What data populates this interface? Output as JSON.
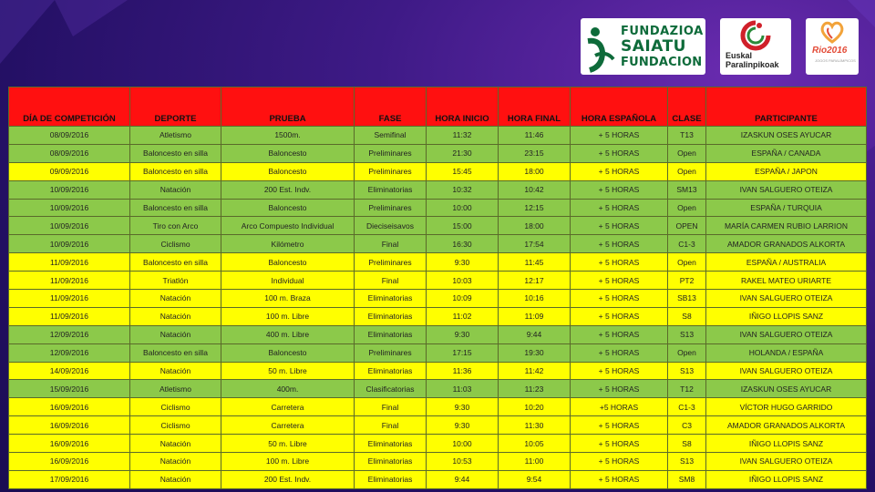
{
  "logos": {
    "fundazioa": [
      "FUNDAZIOA",
      "SAIATU",
      "FUNDACION"
    ],
    "euskal": [
      "Euskal",
      "Paralinpikoak"
    ],
    "rio": "Rio2016",
    "rio_sub": "JOGOS PARALÍMPICOS"
  },
  "table": {
    "headers": [
      "DÍA DE COMPETICIÓN",
      "DEPORTE",
      "PRUEBA",
      "FASE",
      "HORA INICIO",
      "HORA FINAL",
      "HORA ESPAÑOLA",
      "CLASE",
      "PARTICIPANTE"
    ],
    "colors": {
      "header": "#ff1010",
      "green": "#8cc94a",
      "yellow": "#ffff00"
    },
    "rows": [
      {
        "color": "green",
        "cells": [
          "08/09/2016",
          "Atletismo",
          "1500m.",
          "Semifinal",
          "11:32",
          "11:46",
          "+ 5 HORAS",
          "T13",
          "IZASKUN OSES AYUCAR"
        ]
      },
      {
        "color": "green",
        "cells": [
          "08/09/2016",
          "Baloncesto en silla",
          "Baloncesto",
          "Preliminares",
          "21:30",
          "23:15",
          "+ 5 HORAS",
          "Open",
          "ESPAÑA / CANADA"
        ]
      },
      {
        "color": "yellow",
        "cells": [
          "09/09/2016",
          "Baloncesto en silla",
          "Baloncesto",
          "Preliminares",
          "15:45",
          "18:00",
          "+ 5 HORAS",
          "Open",
          "ESPAÑA / JAPON"
        ]
      },
      {
        "color": "green",
        "cells": [
          "10/09/2016",
          "Natación",
          "200 Est. Indv.",
          "Eliminatorias",
          "10:32",
          "10:42",
          "+ 5 HORAS",
          "SM13",
          "IVAN SALGUERO OTEIZA"
        ]
      },
      {
        "color": "green",
        "cells": [
          "10/09/2016",
          "Baloncesto en silla",
          "Baloncesto",
          "Preliminares",
          "10:00",
          "12:15",
          "+ 5 HORAS",
          "Open",
          "ESPAÑA / TURQUIA"
        ]
      },
      {
        "color": "green",
        "cells": [
          "10/09/2016",
          "Tiro con Arco",
          "Arco Compuesto Individual",
          "Dieciseisavos",
          "15:00",
          "18:00",
          "+ 5 HORAS",
          "OPEN",
          "MARÍA CARMEN RUBIO LARRION"
        ]
      },
      {
        "color": "green",
        "cells": [
          "10/09/2016",
          "Ciclismo",
          "Kilómetro",
          "Final",
          "16:30",
          "17:54",
          "+ 5 HORAS",
          "C1-3",
          "AMADOR GRANADOS ALKORTA"
        ]
      },
      {
        "color": "yellow",
        "cells": [
          "11/09/2016",
          "Baloncesto en silla",
          "Baloncesto",
          "Preliminares",
          "9:30",
          "11:45",
          "+ 5 HORAS",
          "Open",
          "ESPAÑA / AUSTRALIA"
        ]
      },
      {
        "color": "yellow",
        "cells": [
          "11/09/2016",
          "Triatlón",
          "Individual",
          "Final",
          "10:03",
          "12:17",
          "+ 5 HORAS",
          "PT2",
          "RAKEL MATEO URIARTE"
        ]
      },
      {
        "color": "yellow",
        "cells": [
          "11/09/2016",
          "Natación",
          "100 m. Braza",
          "Eliminatorias",
          "10:09",
          "10:16",
          "+ 5 HORAS",
          "SB13",
          "IVAN SALGUERO OTEIZA"
        ]
      },
      {
        "color": "yellow",
        "cells": [
          "11/09/2016",
          "Natación",
          "100 m. Libre",
          "Eliminatorias",
          "11:02",
          "11:09",
          "+ 5 HORAS",
          "S8",
          "IÑIGO LLOPIS SANZ"
        ]
      },
      {
        "color": "green",
        "cells": [
          "12/09/2016",
          "Natación",
          "400 m. Libre",
          "Eliminatorias",
          "9:30",
          "9:44",
          "+ 5 HORAS",
          "S13",
          "IVAN SALGUERO OTEIZA"
        ]
      },
      {
        "color": "green",
        "cells": [
          "12/09/2016",
          "Baloncesto en silla",
          "Baloncesto",
          "Preliminares",
          "17:15",
          "19:30",
          "+ 5 HORAS",
          "Open",
          "HOLANDA / ESPAÑA"
        ]
      },
      {
        "color": "yellow",
        "cells": [
          "14/09/2016",
          "Natación",
          "50 m. Libre",
          "Eliminatorias",
          "11:36",
          "11:42",
          "+ 5 HORAS",
          "S13",
          "IVAN SALGUERO OTEIZA"
        ]
      },
      {
        "color": "green",
        "cells": [
          "15/09/2016",
          "Atletismo",
          "400m.",
          "Clasificatorias",
          "11:03",
          "11:23",
          "+ 5 HORAS",
          "T12",
          "IZASKUN OSES AYUCAR"
        ]
      },
      {
        "color": "yellow",
        "cells": [
          "16/09/2016",
          "Ciclismo",
          "Carretera",
          "Final",
          "9:30",
          "10:20",
          "+5 HORAS",
          "C1-3",
          "VÍCTOR HUGO GARRIDO"
        ]
      },
      {
        "color": "yellow",
        "cells": [
          "16/09/2016",
          "Ciclismo",
          "Carretera",
          "Final",
          "9:30",
          "11:30",
          "+ 5 HORAS",
          "C3",
          "AMADOR GRANADOS ALKORTA"
        ]
      },
      {
        "color": "yellow",
        "cells": [
          "16/09/2016",
          "Natación",
          "50 m. Libre",
          "Eliminatorias",
          "10:00",
          "10:05",
          "+ 5 HORAS",
          "S8",
          "IÑIGO LLOPIS SANZ"
        ]
      },
      {
        "color": "yellow",
        "cells": [
          "16/09/2016",
          "Natación",
          "100 m. Libre",
          "Eliminatorias",
          "10:53",
          "11:00",
          "+ 5 HORAS",
          "S13",
          "IVAN SALGUERO OTEIZA"
        ]
      },
      {
        "color": "yellow",
        "cells": [
          "17/09/2016",
          "Natación",
          "200 Est. Indv.",
          "Eliminatorias",
          "9:44",
          "9:54",
          "+ 5 HORAS",
          "SM8",
          "IÑIGO LLOPIS SANZ"
        ]
      }
    ]
  }
}
